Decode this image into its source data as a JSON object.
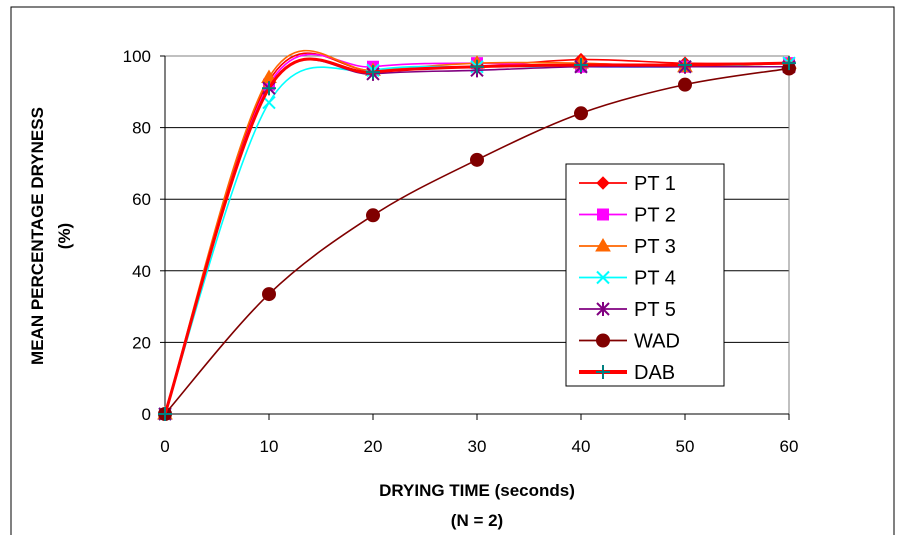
{
  "chart_data": {
    "type": "line",
    "xlabel": "DRYING TIME (seconds)",
    "xlabel_note": "(N = 2)",
    "ylabel": "MEAN PERCENTAGE DRYNESS",
    "ylabel_unit": "(%)",
    "x": [
      0,
      10,
      20,
      30,
      40,
      50,
      60
    ],
    "xlim": [
      0,
      60
    ],
    "ylim": [
      0,
      100
    ],
    "x_ticks": [
      "0",
      "10",
      "20",
      "30",
      "40",
      "50",
      "60"
    ],
    "y_ticks": [
      "0",
      "20",
      "40",
      "60",
      "80",
      "100"
    ],
    "grid": "horizontal",
    "legend_position": "right",
    "series": [
      {
        "name": "PT 1",
        "color": "#FF0000",
        "marker": "diamond",
        "values": [
          0,
          93,
          96,
          97,
          99,
          98,
          98
        ]
      },
      {
        "name": "PT 2",
        "color": "#FF00FF",
        "marker": "square",
        "values": [
          0,
          92,
          97,
          98,
          97,
          97,
          98
        ]
      },
      {
        "name": "PT 3",
        "color": "#FF6600",
        "marker": "triangle",
        "values": [
          0,
          94,
          96,
          98,
          98,
          97,
          98
        ]
      },
      {
        "name": "PT 4",
        "color": "#00FFFF",
        "marker": "x",
        "values": [
          0,
          87,
          96,
          97,
          97,
          97,
          98
        ]
      },
      {
        "name": "PT 5",
        "color": "#800080",
        "marker": "star",
        "values": [
          0,
          91,
          95,
          96,
          97,
          97,
          97
        ]
      },
      {
        "name": "WAD",
        "color": "#800000",
        "marker": "circle",
        "values": [
          0,
          33.5,
          55.5,
          71,
          84,
          92,
          96.5
        ]
      },
      {
        "name": "DAB",
        "color": "#FF0000",
        "marker": "plus",
        "marker_color": "#008080",
        "thick": true,
        "values": [
          0,
          91,
          95.5,
          97,
          97.5,
          97.5,
          98
        ]
      }
    ]
  }
}
